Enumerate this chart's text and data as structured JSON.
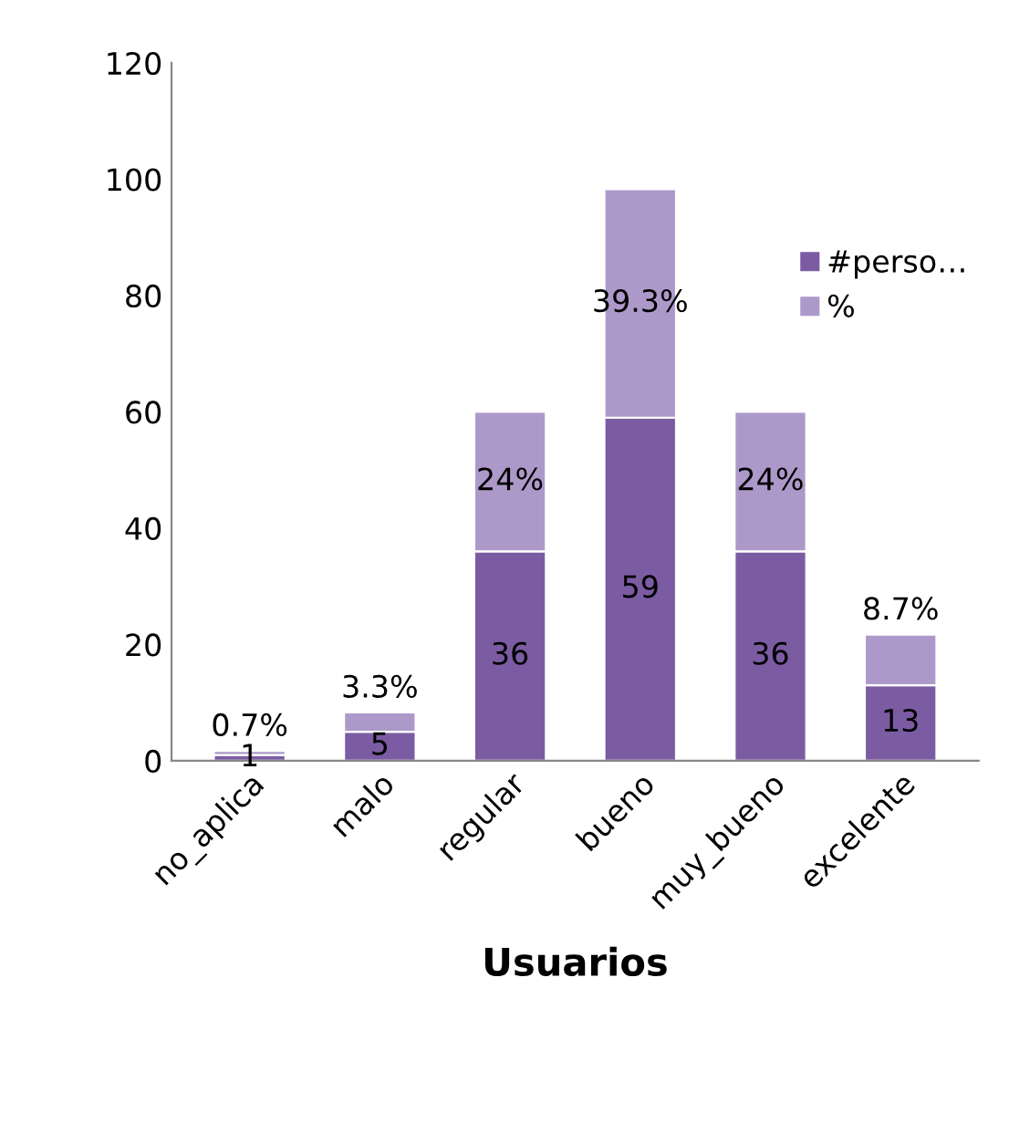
{
  "chart_data": {
    "type": "bar",
    "stacked": true,
    "xlabel": "Usuarios",
    "categories": [
      "no_aplica",
      "malo",
      "regular",
      "bueno",
      "muy_bueno",
      "excelente"
    ],
    "series": [
      {
        "name": "#perso…",
        "color": "#7b5ca3",
        "values": [
          1,
          5,
          36,
          59,
          36,
          13
        ],
        "value_labels": [
          "1",
          "5",
          "36",
          "59",
          "36",
          "13"
        ]
      },
      {
        "name": "%",
        "color": "#ad99c9",
        "values": [
          0.7,
          3.3,
          24,
          39.3,
          24,
          8.7
        ],
        "value_labels": [
          "0.7%",
          "3.3%",
          "24%",
          "39.3%",
          "24%",
          "8.7%"
        ]
      }
    ],
    "ylim": [
      0,
      120
    ],
    "yticks": [
      0,
      20,
      40,
      60,
      80,
      100,
      120
    ],
    "grid": false,
    "legend": "right"
  }
}
